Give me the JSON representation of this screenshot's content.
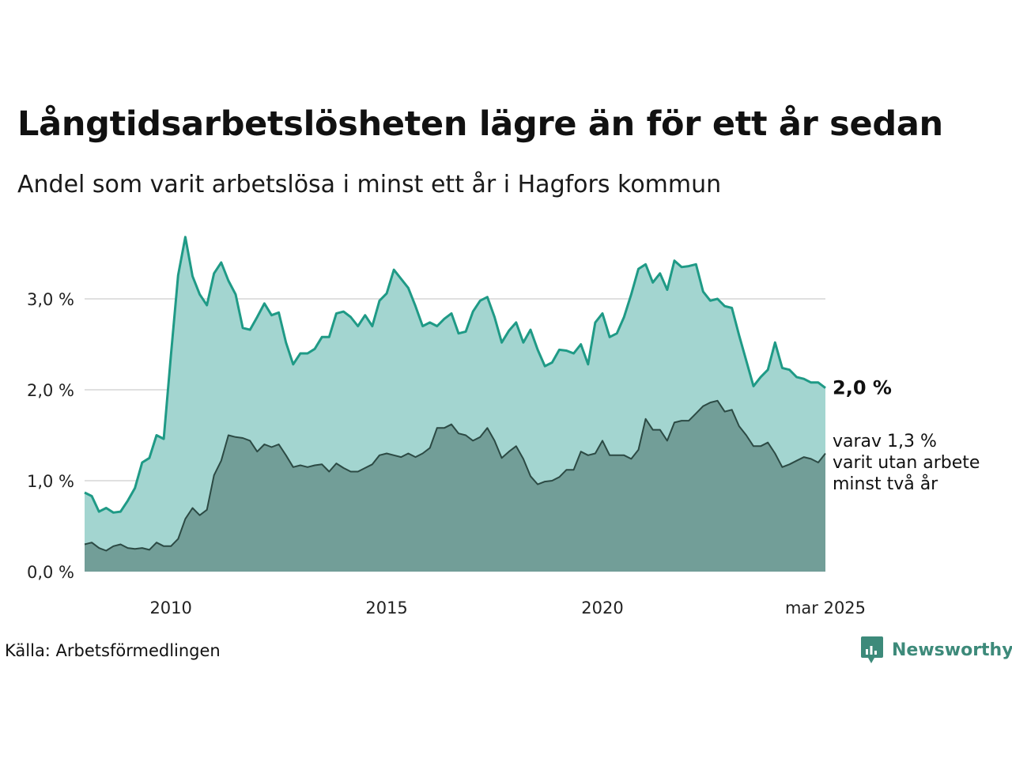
{
  "title": "Långtidsarbetslösheten lägre än för ett år sedan",
  "subtitle": "Andel som varit arbetslösa i minst ett år i Hagfors kommun",
  "source": "Källa: Arbetsförmedlingen",
  "brand": {
    "name": "Newsworthy",
    "icon": "newsworthy-logo-icon"
  },
  "colors": {
    "series1_line": "#1f9a86",
    "series1_fill": "#a3d5d0",
    "series2_line": "#2c4a44",
    "series2_fill": "#729e98",
    "grid": "#e0e0e0"
  },
  "chart_data": {
    "type": "area",
    "title": "Långtidsarbetslösheten lägre än för ett år sedan",
    "subtitle": "Andel som varit arbetslösa i minst ett år i Hagfors kommun",
    "xlabel": "",
    "ylabel": "",
    "ylim": [
      0,
      3.8
    ],
    "xlim": [
      "2008-01",
      "2025-03"
    ],
    "yticks": [
      0,
      1,
      2,
      3
    ],
    "ytick_labels": [
      "0,0 %",
      "1,0 %",
      "2,0 %",
      "3,0 %"
    ],
    "xticks": [
      "2010-01",
      "2015-01",
      "2020-01",
      "2025-03"
    ],
    "xtick_labels": [
      "2010",
      "2015",
      "2020",
      "mar 2025"
    ],
    "grid": true,
    "legend": "none",
    "annotations": [
      {
        "text": "2,0 %",
        "series": 0
      },
      {
        "text": "varav 1,3 % varit utan arbete minst två år",
        "lines": [
          "varav 1,3 %",
          "varit utan arbete",
          "minst två år"
        ],
        "series": 1
      }
    ],
    "series": [
      {
        "points": [
          [
            "2008-01",
            0.87
          ],
          [
            "2008-03",
            0.83
          ],
          [
            "2008-05",
            0.66
          ],
          [
            "2008-07",
            0.7
          ],
          [
            "2008-09",
            0.65
          ],
          [
            "2008-11",
            0.66
          ],
          [
            "2009-01",
            0.78
          ],
          [
            "2009-03",
            0.92
          ],
          [
            "2009-05",
            1.2
          ],
          [
            "2009-07",
            1.25
          ],
          [
            "2009-09",
            1.5
          ],
          [
            "2009-11",
            1.46
          ],
          [
            "2010-01",
            2.38
          ],
          [
            "2010-03",
            3.26
          ],
          [
            "2010-05",
            3.68
          ],
          [
            "2010-07",
            3.25
          ],
          [
            "2010-09",
            3.05
          ],
          [
            "2010-11",
            2.93
          ],
          [
            "2011-01",
            3.28
          ],
          [
            "2011-03",
            3.4
          ],
          [
            "2011-05",
            3.2
          ],
          [
            "2011-07",
            3.05
          ],
          [
            "2011-09",
            2.68
          ],
          [
            "2011-11",
            2.66
          ],
          [
            "2012-01",
            2.8
          ],
          [
            "2012-03",
            2.95
          ],
          [
            "2012-05",
            2.82
          ],
          [
            "2012-07",
            2.85
          ],
          [
            "2012-09",
            2.52
          ],
          [
            "2012-11",
            2.28
          ],
          [
            "2013-01",
            2.4
          ],
          [
            "2013-03",
            2.4
          ],
          [
            "2013-05",
            2.45
          ],
          [
            "2013-07",
            2.58
          ],
          [
            "2013-09",
            2.58
          ],
          [
            "2013-11",
            2.84
          ],
          [
            "2014-01",
            2.86
          ],
          [
            "2014-03",
            2.8
          ],
          [
            "2014-05",
            2.7
          ],
          [
            "2014-07",
            2.82
          ],
          [
            "2014-09",
            2.7
          ],
          [
            "2014-11",
            2.98
          ],
          [
            "2015-01",
            3.06
          ],
          [
            "2015-03",
            3.32
          ],
          [
            "2015-05",
            3.22
          ],
          [
            "2015-07",
            3.12
          ],
          [
            "2015-09",
            2.92
          ],
          [
            "2015-11",
            2.7
          ],
          [
            "2016-01",
            2.74
          ],
          [
            "2016-03",
            2.7
          ],
          [
            "2016-05",
            2.78
          ],
          [
            "2016-07",
            2.84
          ],
          [
            "2016-09",
            2.62
          ],
          [
            "2016-11",
            2.64
          ],
          [
            "2017-01",
            2.86
          ],
          [
            "2017-03",
            2.98
          ],
          [
            "2017-05",
            3.02
          ],
          [
            "2017-07",
            2.8
          ],
          [
            "2017-09",
            2.52
          ],
          [
            "2017-11",
            2.65
          ],
          [
            "2018-01",
            2.74
          ],
          [
            "2018-03",
            2.52
          ],
          [
            "2018-05",
            2.66
          ],
          [
            "2018-07",
            2.44
          ],
          [
            "2018-09",
            2.26
          ],
          [
            "2018-11",
            2.3
          ],
          [
            "2019-01",
            2.44
          ],
          [
            "2019-03",
            2.43
          ],
          [
            "2019-05",
            2.4
          ],
          [
            "2019-07",
            2.5
          ],
          [
            "2019-09",
            2.28
          ],
          [
            "2019-11",
            2.74
          ],
          [
            "2020-01",
            2.84
          ],
          [
            "2020-03",
            2.58
          ],
          [
            "2020-05",
            2.62
          ],
          [
            "2020-07",
            2.8
          ],
          [
            "2020-09",
            3.05
          ],
          [
            "2020-11",
            3.33
          ],
          [
            "2021-01",
            3.38
          ],
          [
            "2021-03",
            3.18
          ],
          [
            "2021-05",
            3.28
          ],
          [
            "2021-07",
            3.1
          ],
          [
            "2021-09",
            3.42
          ],
          [
            "2021-11",
            3.35
          ],
          [
            "2022-01",
            3.36
          ],
          [
            "2022-03",
            3.38
          ],
          [
            "2022-05",
            3.08
          ],
          [
            "2022-07",
            2.98
          ],
          [
            "2022-09",
            3.0
          ],
          [
            "2022-11",
            2.92
          ],
          [
            "2023-01",
            2.9
          ],
          [
            "2023-03",
            2.6
          ],
          [
            "2023-05",
            2.32
          ],
          [
            "2023-07",
            2.04
          ],
          [
            "2023-09",
            2.14
          ],
          [
            "2023-11",
            2.22
          ],
          [
            "2024-01",
            2.52
          ],
          [
            "2024-03",
            2.24
          ],
          [
            "2024-05",
            2.22
          ],
          [
            "2024-07",
            2.14
          ],
          [
            "2024-09",
            2.12
          ],
          [
            "2024-11",
            2.08
          ],
          [
            "2025-01",
            2.08
          ],
          [
            "2025-03",
            2.02
          ]
        ]
      },
      {
        "points": [
          [
            "2008-01",
            0.3
          ],
          [
            "2008-03",
            0.32
          ],
          [
            "2008-05",
            0.26
          ],
          [
            "2008-07",
            0.23
          ],
          [
            "2008-09",
            0.28
          ],
          [
            "2008-11",
            0.3
          ],
          [
            "2009-01",
            0.26
          ],
          [
            "2009-03",
            0.25
          ],
          [
            "2009-05",
            0.26
          ],
          [
            "2009-07",
            0.24
          ],
          [
            "2009-09",
            0.32
          ],
          [
            "2009-11",
            0.28
          ],
          [
            "2010-01",
            0.28
          ],
          [
            "2010-03",
            0.36
          ],
          [
            "2010-05",
            0.58
          ],
          [
            "2010-07",
            0.7
          ],
          [
            "2010-09",
            0.62
          ],
          [
            "2010-11",
            0.68
          ],
          [
            "2011-01",
            1.06
          ],
          [
            "2011-03",
            1.22
          ],
          [
            "2011-05",
            1.5
          ],
          [
            "2011-07",
            1.48
          ],
          [
            "2011-09",
            1.47
          ],
          [
            "2011-11",
            1.44
          ],
          [
            "2012-01",
            1.32
          ],
          [
            "2012-03",
            1.4
          ],
          [
            "2012-05",
            1.37
          ],
          [
            "2012-07",
            1.4
          ],
          [
            "2012-09",
            1.28
          ],
          [
            "2012-11",
            1.15
          ],
          [
            "2013-01",
            1.17
          ],
          [
            "2013-03",
            1.15
          ],
          [
            "2013-05",
            1.17
          ],
          [
            "2013-07",
            1.18
          ],
          [
            "2013-09",
            1.1
          ],
          [
            "2013-11",
            1.19
          ],
          [
            "2014-01",
            1.14
          ],
          [
            "2014-03",
            1.1
          ],
          [
            "2014-05",
            1.1
          ],
          [
            "2014-07",
            1.14
          ],
          [
            "2014-09",
            1.18
          ],
          [
            "2014-11",
            1.28
          ],
          [
            "2015-01",
            1.3
          ],
          [
            "2015-03",
            1.28
          ],
          [
            "2015-05",
            1.26
          ],
          [
            "2015-07",
            1.3
          ],
          [
            "2015-09",
            1.26
          ],
          [
            "2015-11",
            1.3
          ],
          [
            "2016-01",
            1.36
          ],
          [
            "2016-03",
            1.58
          ],
          [
            "2016-05",
            1.58
          ],
          [
            "2016-07",
            1.62
          ],
          [
            "2016-09",
            1.52
          ],
          [
            "2016-11",
            1.5
          ],
          [
            "2017-01",
            1.44
          ],
          [
            "2017-03",
            1.48
          ],
          [
            "2017-05",
            1.58
          ],
          [
            "2017-07",
            1.44
          ],
          [
            "2017-09",
            1.25
          ],
          [
            "2017-11",
            1.32
          ],
          [
            "2018-01",
            1.38
          ],
          [
            "2018-03",
            1.24
          ],
          [
            "2018-05",
            1.05
          ],
          [
            "2018-07",
            0.96
          ],
          [
            "2018-09",
            0.99
          ],
          [
            "2018-11",
            1.0
          ],
          [
            "2019-01",
            1.04
          ],
          [
            "2019-03",
            1.12
          ],
          [
            "2019-05",
            1.12
          ],
          [
            "2019-07",
            1.32
          ],
          [
            "2019-09",
            1.28
          ],
          [
            "2019-11",
            1.3
          ],
          [
            "2020-01",
            1.44
          ],
          [
            "2020-03",
            1.28
          ],
          [
            "2020-05",
            1.28
          ],
          [
            "2020-07",
            1.28
          ],
          [
            "2020-09",
            1.24
          ],
          [
            "2020-11",
            1.34
          ],
          [
            "2021-01",
            1.68
          ],
          [
            "2021-03",
            1.56
          ],
          [
            "2021-05",
            1.56
          ],
          [
            "2021-07",
            1.44
          ],
          [
            "2021-09",
            1.64
          ],
          [
            "2021-11",
            1.66
          ],
          [
            "2022-01",
            1.66
          ],
          [
            "2022-03",
            1.74
          ],
          [
            "2022-05",
            1.82
          ],
          [
            "2022-07",
            1.86
          ],
          [
            "2022-09",
            1.88
          ],
          [
            "2022-11",
            1.76
          ],
          [
            "2023-01",
            1.78
          ],
          [
            "2023-03",
            1.6
          ],
          [
            "2023-05",
            1.5
          ],
          [
            "2023-07",
            1.38
          ],
          [
            "2023-09",
            1.38
          ],
          [
            "2023-11",
            1.42
          ],
          [
            "2024-01",
            1.3
          ],
          [
            "2024-03",
            1.15
          ],
          [
            "2024-05",
            1.18
          ],
          [
            "2024-07",
            1.22
          ],
          [
            "2024-09",
            1.26
          ],
          [
            "2024-11",
            1.24
          ],
          [
            "2025-01",
            1.2
          ],
          [
            "2025-03",
            1.3
          ]
        ]
      }
    ]
  }
}
